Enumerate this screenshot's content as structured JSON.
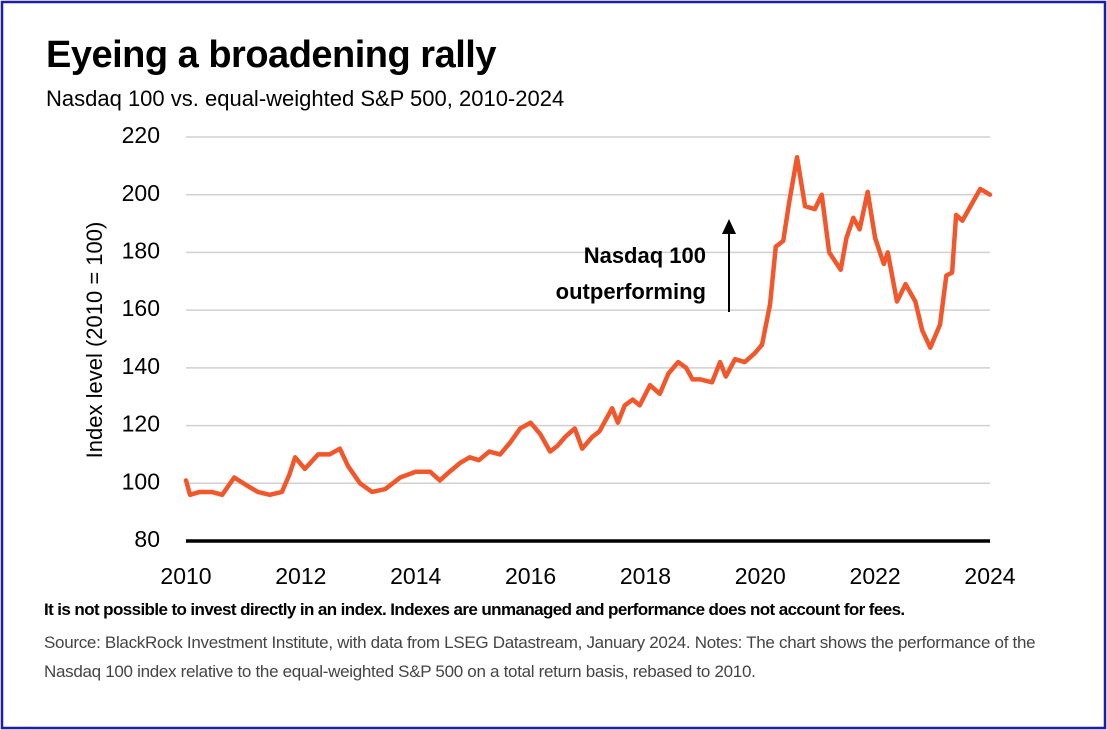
{
  "chart_data": {
    "type": "line",
    "title": "Eyeing a broadening rally",
    "subtitle": "Nasdaq 100 vs. equal-weighted S&P 500, 2010-2024",
    "ylabel": "Index level (2010 = 100)",
    "annotation": [
      "Nasdaq 100",
      "outperforming"
    ],
    "footnote": "It is not possible to invest directly in an index. Indexes are unmanaged and performance does not account for fees.",
    "source": "Source: BlackRock Investment Institute, with data from LSEG Datastream, January 2024. Notes: The chart shows the performance of the  Nasdaq 100 index relative to the equal-weighted S&P 500 on a total return basis, rebased to 2010.",
    "x": [
      2010.0,
      2010.07,
      2010.24,
      2010.45,
      2010.63,
      2010.84,
      2011.08,
      2011.25,
      2011.46,
      2011.67,
      2011.8,
      2011.9,
      2012.07,
      2012.3,
      2012.5,
      2012.68,
      2012.82,
      2013.03,
      2013.24,
      2013.47,
      2013.73,
      2014.0,
      2014.25,
      2014.42,
      2014.59,
      2014.77,
      2014.94,
      2015.1,
      2015.28,
      2015.47,
      2015.64,
      2015.82,
      2016.0,
      2016.17,
      2016.34,
      2016.47,
      2016.6,
      2016.77,
      2016.9,
      2017.07,
      2017.2,
      2017.42,
      2017.52,
      2017.64,
      2017.78,
      2017.9,
      2018.08,
      2018.25,
      2018.4,
      2018.57,
      2018.71,
      2018.82,
      2018.96,
      2019.16,
      2019.3,
      2019.4,
      2019.56,
      2019.73,
      2019.9,
      2020.03,
      2020.17,
      2020.27,
      2020.4,
      2020.5,
      2020.64,
      2020.78,
      2020.95,
      2021.07,
      2021.2,
      2021.4,
      2021.5,
      2021.62,
      2021.73,
      2021.87,
      2022.0,
      2022.15,
      2022.22,
      2022.38,
      2022.53,
      2022.7,
      2022.82,
      2022.96,
      2023.13,
      2023.24,
      2023.34,
      2023.41,
      2023.52,
      2023.66,
      2023.83,
      2024.0
    ],
    "series": [
      {
        "name": "Nasdaq 100 vs. equal-weighted S&P 500",
        "color": "#f2572b",
        "values": [
          101,
          96,
          97,
          97,
          96,
          102,
          99,
          97,
          96,
          97,
          103,
          109,
          105,
          110,
          110,
          112,
          106,
          100,
          97,
          98,
          102,
          104,
          104,
          101,
          104,
          107,
          109,
          108,
          111,
          110,
          114,
          119,
          121,
          117,
          111,
          113,
          116,
          119,
          112,
          116,
          118,
          126,
          121,
          127,
          129,
          127,
          134,
          131,
          138,
          142,
          140,
          136,
          136,
          135,
          142,
          137,
          143,
          142,
          145,
          148,
          162,
          182,
          184,
          197,
          213,
          196,
          195,
          200,
          180,
          174,
          185,
          192,
          188,
          201,
          185,
          176,
          180,
          163,
          169,
          163,
          153,
          147,
          155,
          172,
          173,
          193,
          191,
          196,
          202,
          200
        ]
      }
    ],
    "xlim": [
      2010,
      2024
    ],
    "xticks": [
      2010,
      2012,
      2014,
      2016,
      2018,
      2020,
      2022,
      2024
    ],
    "ylim": [
      80,
      220
    ],
    "yticks": [
      80,
      100,
      120,
      140,
      160,
      180,
      200,
      220
    ],
    "grid": true
  }
}
